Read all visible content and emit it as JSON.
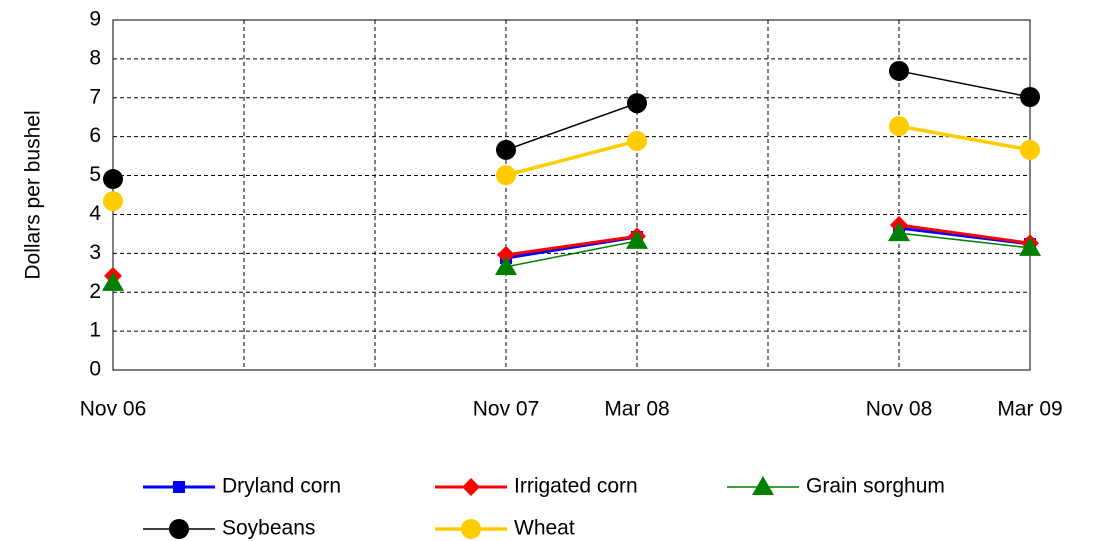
{
  "chart_data": {
    "type": "line",
    "y_label": "Dollars per bushel",
    "categories": [
      "Nov 06",
      null,
      null,
      "Nov 07",
      "Mar 08",
      null,
      "Nov 08",
      "Mar 09"
    ],
    "ylim": [
      0,
      9
    ],
    "yticks": [
      0,
      1,
      2,
      3,
      4,
      5,
      6,
      7,
      8,
      9
    ],
    "grid": true,
    "series": [
      {
        "name": "Dryland corn",
        "color": "#0000ff",
        "marker": "square",
        "values": [
          null,
          null,
          null,
          2.88,
          3.42,
          null,
          3.65,
          3.24
        ]
      },
      {
        "name": "Irrigated corn",
        "color": "#ff0000",
        "marker": "diamond",
        "values": [
          2.42,
          null,
          null,
          2.96,
          3.44,
          null,
          3.73,
          3.26
        ]
      },
      {
        "name": "Grain sorghum",
        "color": "#008000",
        "marker": "triangle",
        "values": [
          2.24,
          null,
          null,
          2.65,
          3.32,
          null,
          3.52,
          3.14
        ]
      },
      {
        "name": "Soybeans",
        "color": "#000000",
        "marker": "circle",
        "values": [
          4.91,
          null,
          null,
          5.66,
          6.86,
          null,
          7.69,
          7.02
        ]
      },
      {
        "name": "Wheat",
        "color": "#ffcc00",
        "marker": "circle",
        "values": [
          4.34,
          null,
          null,
          5.01,
          5.89,
          null,
          6.27,
          5.66
        ]
      }
    ]
  }
}
